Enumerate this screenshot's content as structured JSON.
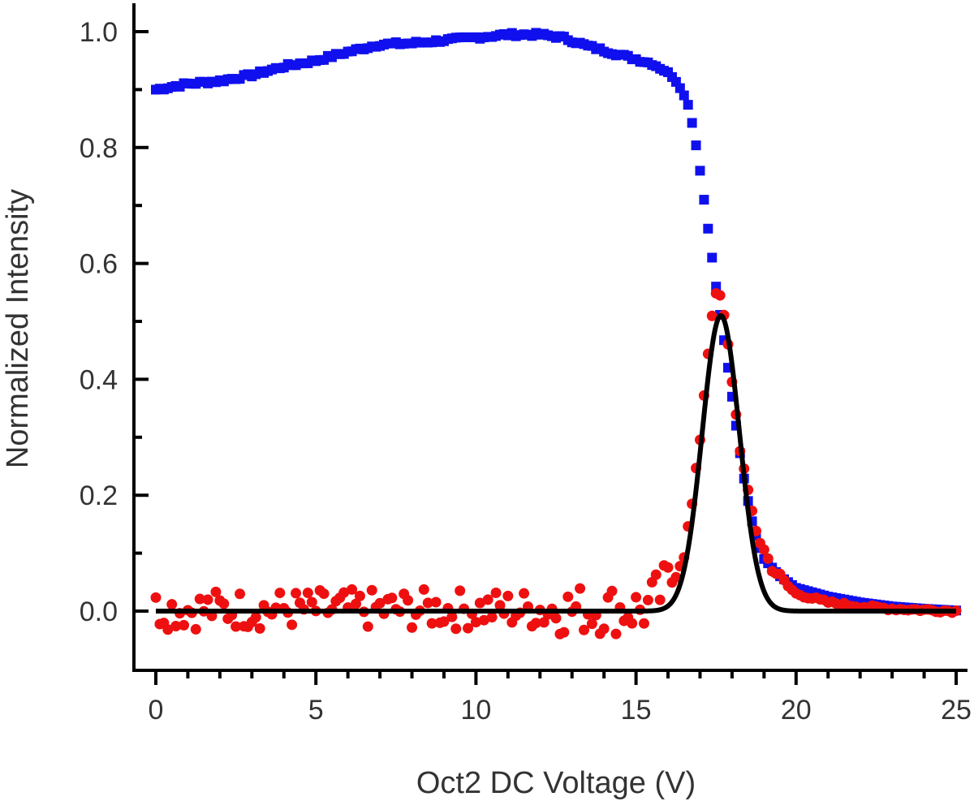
{
  "chart_data": {
    "type": "scatter",
    "xlabel": "Oct2 DC Voltage (V)",
    "ylabel": "Normalized Intensity",
    "xlim": [
      -0.6,
      25.3
    ],
    "ylim": [
      -0.1,
      1.05
    ],
    "x_ticks": [
      0,
      5,
      10,
      15,
      20,
      25
    ],
    "x_tick_labels": [
      "0",
      "5",
      "10",
      "15",
      "20",
      "25"
    ],
    "y_ticks": [
      0.0,
      0.2,
      0.4,
      0.6,
      0.8,
      1.0
    ],
    "y_tick_labels": [
      "0.0",
      "0.2",
      "0.4",
      "0.6",
      "0.8",
      "1.0"
    ],
    "x_minor_step": 1,
    "y_minor_step": 0.1,
    "grid": false,
    "series": [
      {
        "name": "series-blue-squares",
        "marker": "square",
        "color": "#1010ee",
        "x_start": 0.0,
        "x_step": 0.125,
        "count": 201,
        "y_anchor_x": [
          0,
          1,
          2,
          3,
          4,
          5,
          6,
          7,
          8,
          9,
          10,
          11,
          12,
          12.7,
          13.5,
          14.5,
          15.5,
          16.0,
          16.3,
          16.6,
          16.8,
          17.0,
          17.2,
          17.4,
          17.6,
          17.8,
          18.0,
          18.2,
          18.4,
          18.6,
          18.8,
          19.0,
          19.5,
          20.0,
          21.0,
          22.0,
          23.0,
          24.0,
          25.0
        ],
        "y_anchor_y": [
          0.9,
          0.91,
          0.915,
          0.925,
          0.94,
          0.95,
          0.965,
          0.978,
          0.98,
          0.985,
          0.99,
          0.995,
          0.995,
          0.99,
          0.975,
          0.96,
          0.945,
          0.93,
          0.91,
          0.88,
          0.83,
          0.76,
          0.68,
          0.6,
          0.52,
          0.45,
          0.37,
          0.29,
          0.22,
          0.16,
          0.12,
          0.09,
          0.06,
          0.04,
          0.025,
          0.015,
          0.008,
          0.004,
          0.001
        ]
      },
      {
        "name": "series-red-circles",
        "marker": "circle",
        "color": "#ee1010",
        "x_start": 0.0,
        "x_step": 0.125,
        "count": 201,
        "y_anchor_x": [
          0,
          15.3,
          15.8,
          16.2,
          16.5,
          16.8,
          17.0,
          17.2,
          17.4,
          17.6,
          17.8,
          18.0,
          18.2,
          18.5,
          18.8,
          19.2,
          19.6,
          20.0,
          21.0,
          22.0,
          23.0,
          24.0,
          25.0
        ],
        "y_anchor_y": [
          0.0,
          0.0,
          0.03,
          0.06,
          0.1,
          0.2,
          0.3,
          0.42,
          0.53,
          0.55,
          0.49,
          0.4,
          0.3,
          0.2,
          0.13,
          0.08,
          0.05,
          0.03,
          0.015,
          0.008,
          0.004,
          0.002,
          0.0
        ],
        "noise_amplitude": 0.035,
        "noise_until_x": 16.2
      },
      {
        "name": "gaussian-fit-line",
        "marker": "line",
        "color": "#000000",
        "baseline": 0.0,
        "amplitude": 0.51,
        "center": 17.65,
        "sigma": 0.58,
        "x_from": 0.0,
        "x_to": 25.0
      }
    ]
  }
}
